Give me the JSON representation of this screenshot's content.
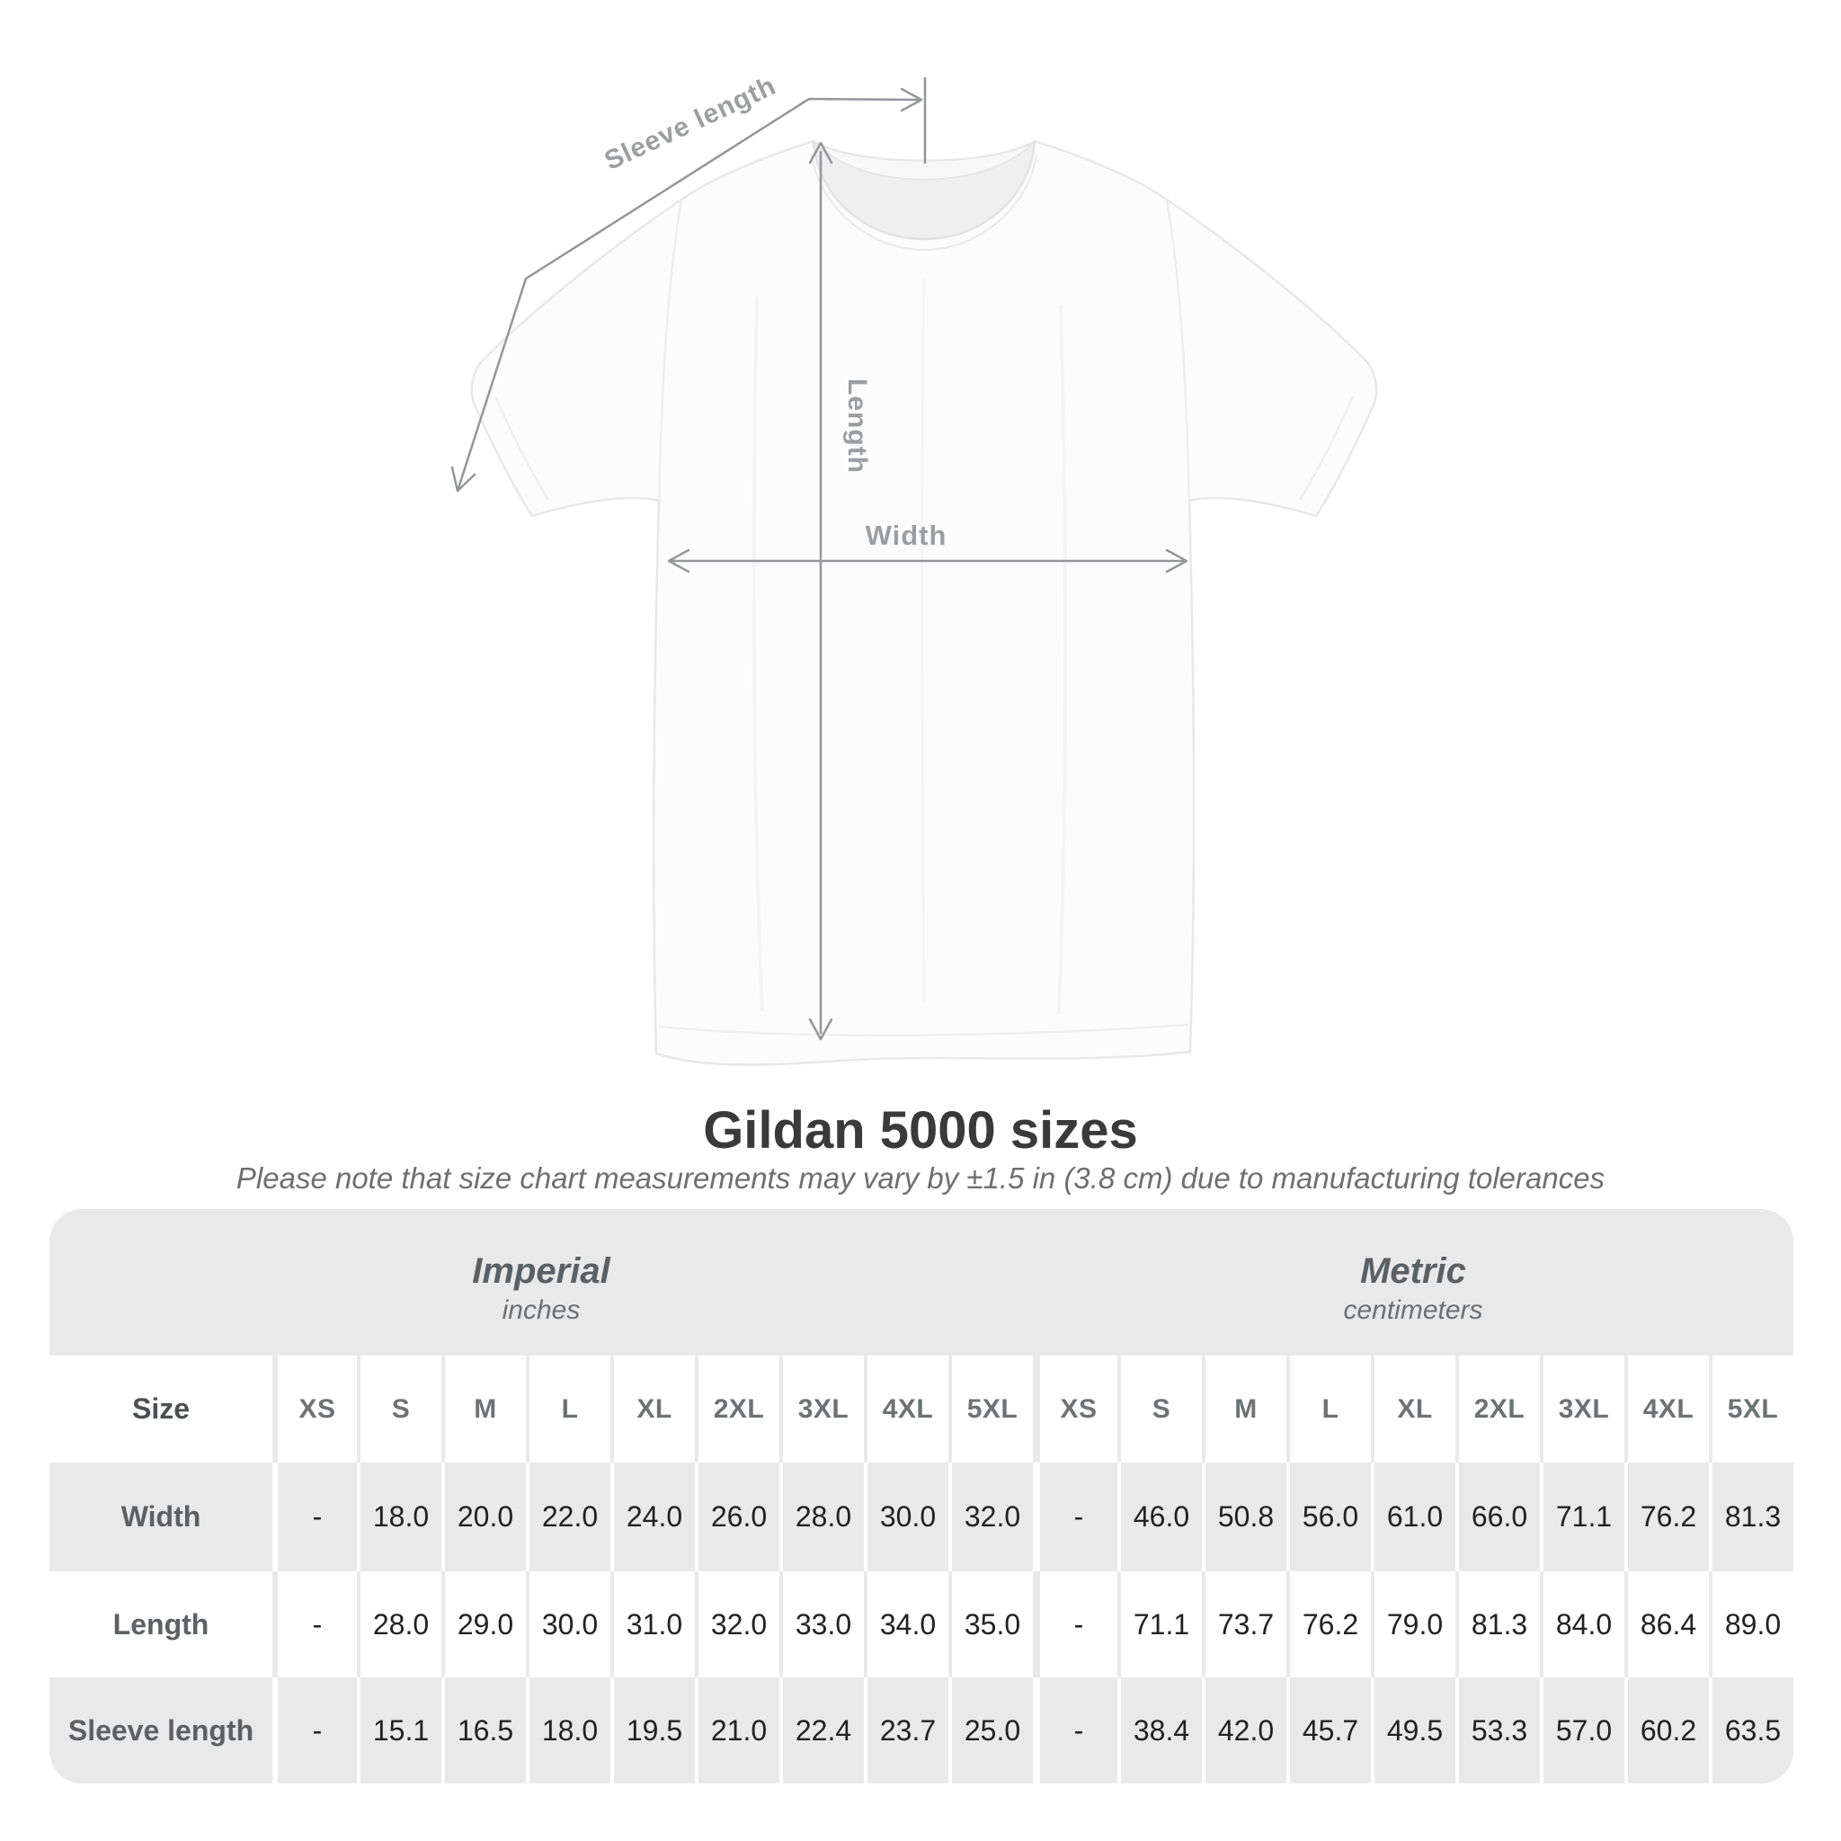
{
  "diagram": {
    "sleeve_label": "Sleeve length",
    "length_label": "Length",
    "width_label": "Width"
  },
  "header": {
    "title": "Gildan 5000 sizes",
    "subtitle": "Please note that size chart measurements may vary by ±1.5 in (3.8 cm) due to manufacturing tolerances"
  },
  "table": {
    "corner_label": "Size",
    "groups": [
      {
        "name": "Imperial",
        "unit": "inches",
        "sizes": [
          "XS",
          "S",
          "M",
          "L",
          "XL",
          "2XL",
          "3XL",
          "4XL",
          "5XL"
        ]
      },
      {
        "name": "Metric",
        "unit": "centimeters",
        "sizes": [
          "XS",
          "S",
          "M",
          "L",
          "XL",
          "2XL",
          "3XL",
          "4XL",
          "5XL"
        ]
      }
    ],
    "rows": [
      {
        "label": "Width",
        "imperial": [
          "-",
          "18.0",
          "20.0",
          "22.0",
          "24.0",
          "26.0",
          "28.0",
          "30.0",
          "32.0"
        ],
        "metric": [
          "-",
          "46.0",
          "50.8",
          "56.0",
          "61.0",
          "66.0",
          "71.1",
          "76.2",
          "81.3"
        ]
      },
      {
        "label": "Length",
        "imperial": [
          "-",
          "28.0",
          "29.0",
          "30.0",
          "31.0",
          "32.0",
          "33.0",
          "34.0",
          "35.0"
        ],
        "metric": [
          "-",
          "71.1",
          "73.7",
          "76.2",
          "79.0",
          "81.3",
          "84.0",
          "86.4",
          "89.0"
        ]
      },
      {
        "label": "Sleeve length",
        "imperial": [
          "-",
          "15.1",
          "16.5",
          "18.0",
          "19.5",
          "21.0",
          "22.4",
          "23.7",
          "25.0"
        ],
        "metric": [
          "-",
          "38.4",
          "42.0",
          "45.7",
          "49.5",
          "53.3",
          "57.0",
          "60.2",
          "63.5"
        ]
      }
    ]
  },
  "chart_data": {
    "type": "table",
    "title": "Gildan 5000 sizes",
    "columns": [
      "Size",
      "XS",
      "S",
      "M",
      "L",
      "XL",
      "2XL",
      "3XL",
      "4XL",
      "5XL"
    ],
    "units": {
      "imperial": "inches",
      "metric": "centimeters"
    },
    "imperial_rows": [
      [
        "Width",
        "-",
        18.0,
        20.0,
        22.0,
        24.0,
        26.0,
        28.0,
        30.0,
        32.0
      ],
      [
        "Length",
        "-",
        28.0,
        29.0,
        30.0,
        31.0,
        32.0,
        33.0,
        34.0,
        35.0
      ],
      [
        "Sleeve length",
        "-",
        15.1,
        16.5,
        18.0,
        19.5,
        21.0,
        22.4,
        23.7,
        25.0
      ]
    ],
    "metric_rows": [
      [
        "Width",
        "-",
        46.0,
        50.8,
        56.0,
        61.0,
        66.0,
        71.1,
        76.2,
        81.3
      ],
      [
        "Length",
        "-",
        71.1,
        73.7,
        76.2,
        79.0,
        81.3,
        84.0,
        86.4,
        89.0
      ],
      [
        "Sleeve length",
        "-",
        38.4,
        42.0,
        45.7,
        49.5,
        53.3,
        57.0,
        60.2,
        63.5
      ]
    ],
    "tolerance_note": "±1.5 in (3.8 cm)"
  },
  "colors": {
    "band_gray": "#e9e9e9",
    "stripe_gray": "#e9e9e9",
    "annotation_gray": "#94969a",
    "value_text": "#222222",
    "title_text": "#3a3a3a"
  }
}
